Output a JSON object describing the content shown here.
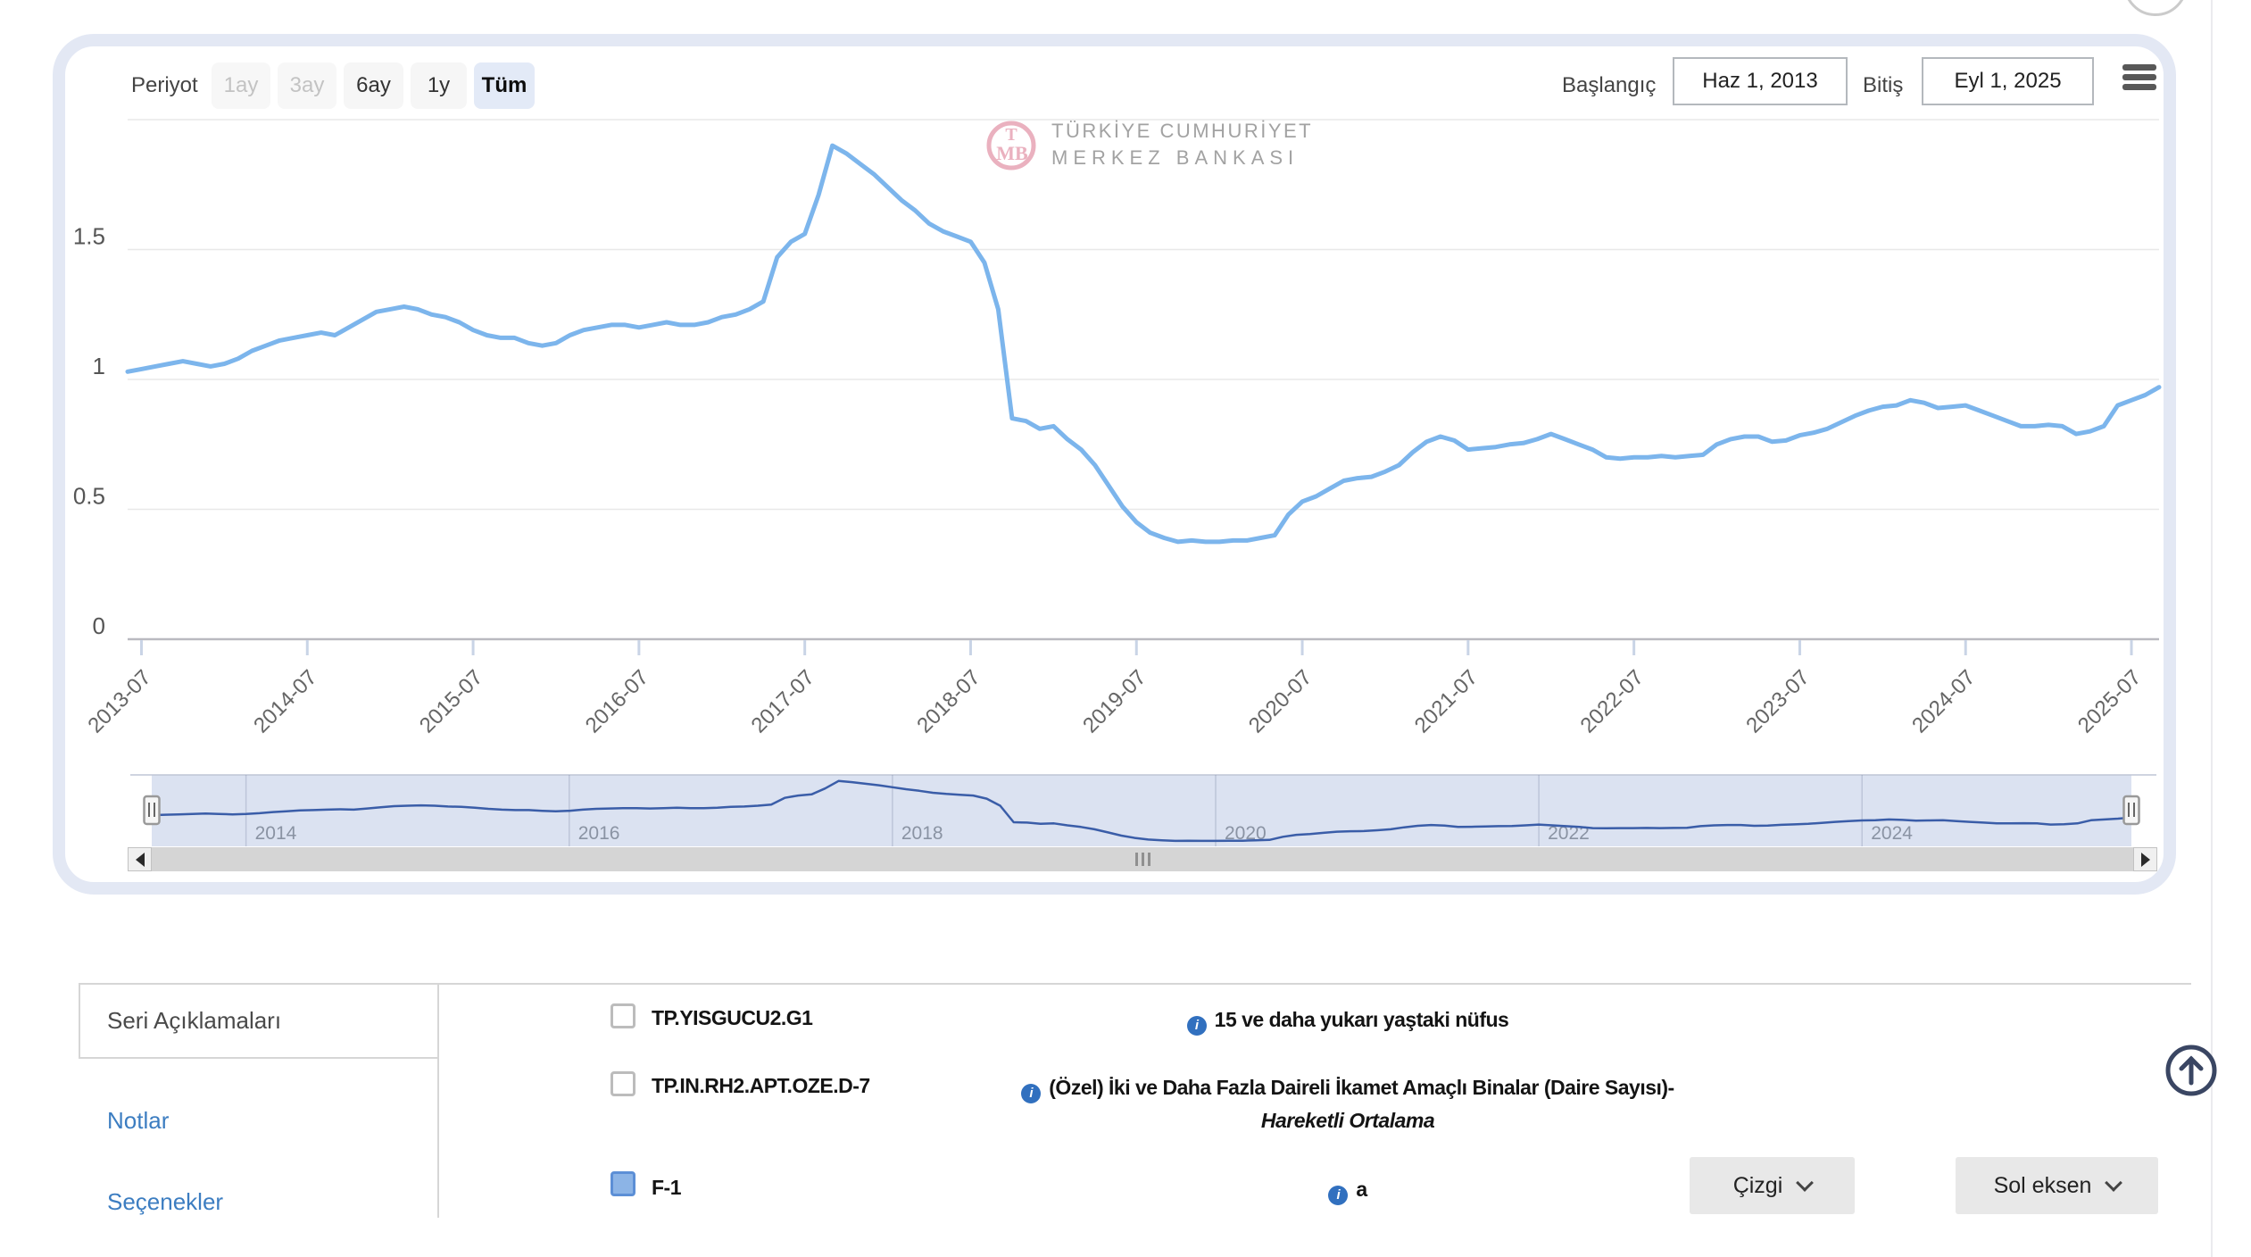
{
  "toolbar": {
    "period_label": "Periyot",
    "periods": [
      {
        "label": "1ay",
        "state": "disabled"
      },
      {
        "label": "3ay",
        "state": "disabled"
      },
      {
        "label": "6ay",
        "state": "normal"
      },
      {
        "label": "1y",
        "state": "normal"
      },
      {
        "label": "Tüm",
        "state": "selected"
      }
    ],
    "start_label": "Başlangıç",
    "start_value": "Haz 1, 2013",
    "end_label": "Bitiş",
    "end_value": "Eyl 1, 2025"
  },
  "logo": {
    "monogram_top": "T",
    "monogram_bottom": "MB",
    "line1": "TÜRKİYE CUMHURİYET",
    "line2": "MERKEZ BANKASI"
  },
  "chart_data": {
    "type": "line",
    "title": "",
    "xlabel": "",
    "ylabel": "",
    "x_unit": "month",
    "x_start": "2013-06",
    "x_end": "2025-09",
    "ylim": [
      0,
      2.0
    ],
    "y_ticks": [
      0,
      0.5,
      1,
      1.5
    ],
    "grid": true,
    "x_tick_labels": [
      "2013-07",
      "2014-07",
      "2015-07",
      "2016-07",
      "2017-07",
      "2018-07",
      "2019-07",
      "2020-07",
      "2021-07",
      "2022-07",
      "2023-07",
      "2024-07",
      "2025-07"
    ],
    "series": [
      {
        "name": "F-1",
        "color": "#7cb5ec",
        "values": [
          1.03,
          1.04,
          1.05,
          1.06,
          1.07,
          1.06,
          1.05,
          1.06,
          1.08,
          1.11,
          1.13,
          1.15,
          1.16,
          1.17,
          1.18,
          1.17,
          1.2,
          1.23,
          1.26,
          1.27,
          1.28,
          1.27,
          1.25,
          1.24,
          1.22,
          1.19,
          1.17,
          1.16,
          1.16,
          1.14,
          1.13,
          1.14,
          1.17,
          1.19,
          1.2,
          1.21,
          1.21,
          1.2,
          1.21,
          1.22,
          1.21,
          1.21,
          1.22,
          1.24,
          1.25,
          1.27,
          1.3,
          1.47,
          1.53,
          1.56,
          1.71,
          1.9,
          1.87,
          1.83,
          1.79,
          1.74,
          1.69,
          1.65,
          1.6,
          1.57,
          1.55,
          1.53,
          1.45,
          1.27,
          0.85,
          0.84,
          0.81,
          0.82,
          0.77,
          0.73,
          0.67,
          0.59,
          0.51,
          0.45,
          0.41,
          0.39,
          0.375,
          0.38,
          0.375,
          0.375,
          0.38,
          0.38,
          0.39,
          0.4,
          0.48,
          0.53,
          0.55,
          0.58,
          0.61,
          0.62,
          0.625,
          0.645,
          0.67,
          0.72,
          0.76,
          0.78,
          0.765,
          0.73,
          0.735,
          0.74,
          0.75,
          0.755,
          0.77,
          0.79,
          0.77,
          0.75,
          0.73,
          0.7,
          0.695,
          0.7,
          0.7,
          0.705,
          0.7,
          0.705,
          0.71,
          0.75,
          0.77,
          0.78,
          0.78,
          0.76,
          0.765,
          0.785,
          0.795,
          0.81,
          0.835,
          0.86,
          0.88,
          0.895,
          0.9,
          0.92,
          0.91,
          0.89,
          0.895,
          0.9,
          0.88,
          0.86,
          0.84,
          0.82,
          0.82,
          0.825,
          0.82,
          0.79,
          0.8,
          0.82,
          0.9,
          0.92,
          0.94,
          0.97
        ]
      }
    ],
    "navigator": {
      "year_labels": [
        "2014",
        "2016",
        "2018",
        "2020",
        "2022",
        "2024"
      ],
      "year_month_index": [
        7,
        31,
        55,
        79,
        103,
        127
      ]
    },
    "legend_position": "none"
  },
  "tabs": {
    "items": [
      {
        "label": "Seri Açıklamaları",
        "active": true
      },
      {
        "label": "Notlar",
        "active": false
      },
      {
        "label": "Seçenekler",
        "active": false
      }
    ]
  },
  "series_list": [
    {
      "code": "TP.YISGUCU2.G1",
      "checked": false,
      "description": "15 ve daha yukarı yaştaki nüfus",
      "description_italic": ""
    },
    {
      "code": "TP.IN.RH2.APT.OZE.D-7",
      "checked": false,
      "description": "(Özel) İki ve Daha Fazla Daireli İkamet Amaçlı Binalar (Daire Sayısı)-",
      "description_italic": "Hareketli Ortalama"
    },
    {
      "code": "F-1",
      "checked": true,
      "description": "a",
      "description_italic": "",
      "chart_type": "Çizgi",
      "axis_label": "Sol eksen"
    }
  ]
}
